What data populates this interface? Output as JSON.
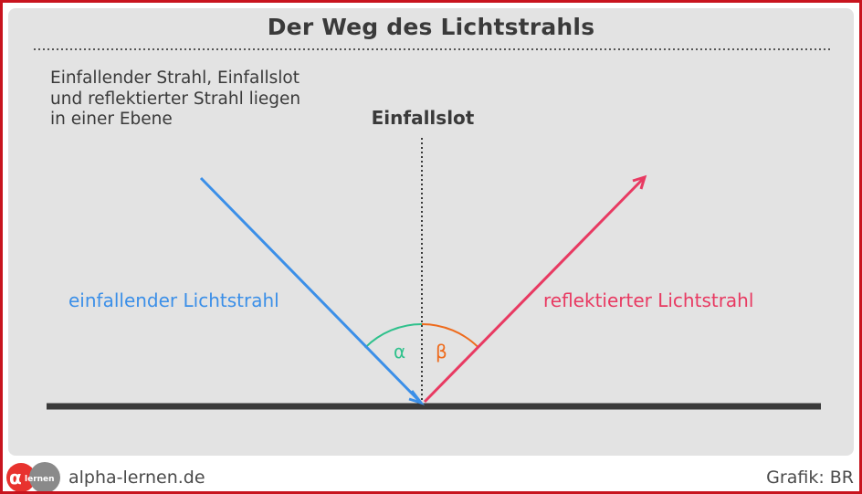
{
  "title": "Der Weg des Lichtstrahls",
  "description": {
    "lines": [
      "Einfallender Strahl, Einfallslot",
      "und reflektierter Strahl liegen",
      "in einer Ebene"
    ]
  },
  "labels": {
    "normal": "Einfallslot",
    "incident_ray": "einfallender Lichtstrahl",
    "reflected_ray": "reflektierter Lichtstrahl",
    "angle_incidence": "α",
    "angle_reflection": "β"
  },
  "footer": {
    "logo_text": "lernen",
    "site": "alpha-lernen.de",
    "credit": "Grafik: BR"
  },
  "colors": {
    "frame": "#c8141e",
    "panel": "#e3e3e3",
    "incident_ray": "#3b8fe8",
    "reflected_ray": "#e83a62",
    "alpha_arc": "#2fc18c",
    "beta_arc": "#ee6b1c",
    "surface": "#3a3a3a"
  }
}
